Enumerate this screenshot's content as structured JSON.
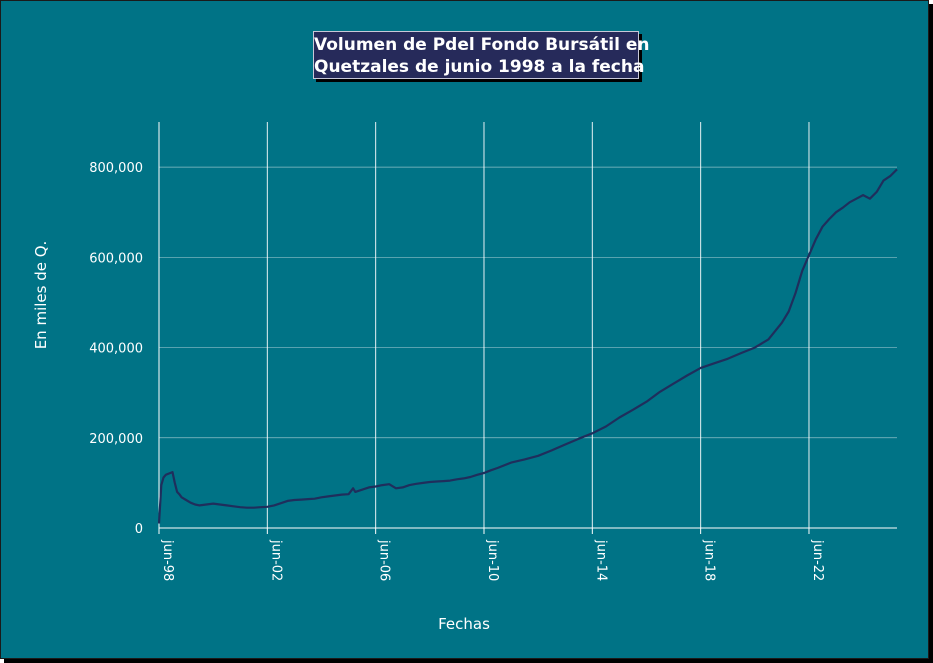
{
  "chart_data": {
    "type": "line",
    "title_lines": [
      "Volumen de Pdel Fondo Bursátil en",
      "Quetzales de junio 1998 a la fecha"
    ],
    "xlabel": "Fechas",
    "ylabel": "En miles de Q.",
    "x_ticks": [
      "jun-98",
      "jun-02",
      "jun-06",
      "jun-10",
      "jun-14",
      "jun-18",
      "jun-22"
    ],
    "y_ticks": [
      "0",
      "200,000",
      "400,000",
      "600,000",
      "800,000"
    ],
    "ylim": [
      0,
      900000
    ],
    "xlim": [
      "1998-06",
      "2025-09"
    ],
    "grid": {
      "vertical": true,
      "horizontal": true
    },
    "colors": {
      "background": "#007386",
      "line": "#1f2e5c",
      "title_bg": "#262a5a",
      "grid": "#ffffff"
    },
    "series": [
      {
        "x": [
          "1998-06",
          "1998-07",
          "1998-08",
          "1998-09",
          "1998-10",
          "1998-11",
          "1998-12",
          "1999-01",
          "1999-02",
          "1999-03",
          "1999-04",
          "1999-06",
          "1999-08",
          "1999-10",
          "1999-12",
          "2000-03",
          "2000-06",
          "2000-09",
          "2000-12",
          "2001-03",
          "2001-06",
          "2001-09",
          "2001-12",
          "2002-03",
          "2002-06",
          "2002-09",
          "2002-12",
          "2003-03",
          "2003-06",
          "2003-09",
          "2003-12",
          "2004-03",
          "2004-06",
          "2004-09",
          "2004-12",
          "2005-03",
          "2005-06",
          "2005-08",
          "2005-09",
          "2005-12",
          "2006-03",
          "2006-06",
          "2006-09",
          "2006-12",
          "2007-03",
          "2007-06",
          "2007-09",
          "2007-12",
          "2008-03",
          "2008-06",
          "2008-09",
          "2008-12",
          "2009-03",
          "2009-06",
          "2009-09",
          "2009-12",
          "2010-03",
          "2010-06",
          "2010-09",
          "2010-12",
          "2011-06",
          "2011-12",
          "2012-06",
          "2012-12",
          "2013-06",
          "2013-12",
          "2014-06",
          "2014-12",
          "2015-06",
          "2015-12",
          "2016-06",
          "2016-12",
          "2017-06",
          "2017-12",
          "2018-06",
          "2018-12",
          "2019-06",
          "2019-12",
          "2020-06",
          "2020-12",
          "2021-06",
          "2021-09",
          "2021-12",
          "2022-03",
          "2022-06",
          "2022-09",
          "2022-12",
          "2023-03",
          "2023-06",
          "2023-09",
          "2023-12",
          "2024-03",
          "2024-06",
          "2024-09",
          "2024-12",
          "2025-03",
          "2025-06",
          "2025-09"
        ],
        "values": [
          10000,
          95000,
          112000,
          118000,
          120000,
          122000,
          124000,
          100000,
          80000,
          75000,
          68000,
          62000,
          56000,
          52000,
          50000,
          52000,
          54000,
          52000,
          50000,
          48000,
          46000,
          45000,
          45000,
          46000,
          47000,
          50000,
          55000,
          60000,
          62000,
          63000,
          64000,
          65000,
          68000,
          70000,
          72000,
          74000,
          75000,
          88000,
          80000,
          85000,
          90000,
          92000,
          95000,
          97000,
          88000,
          90000,
          95000,
          98000,
          100000,
          102000,
          103000,
          104000,
          105000,
          108000,
          110000,
          113000,
          118000,
          122000,
          128000,
          133000,
          145000,
          152000,
          160000,
          172000,
          185000,
          198000,
          210000,
          225000,
          245000,
          262000,
          280000,
          302000,
          320000,
          338000,
          355000,
          365000,
          375000,
          388000,
          400000,
          418000,
          455000,
          480000,
          520000,
          570000,
          605000,
          640000,
          668000,
          685000,
          700000,
          710000,
          722000,
          730000,
          738000,
          730000,
          745000,
          770000,
          780000,
          795000
        ]
      }
    ]
  }
}
